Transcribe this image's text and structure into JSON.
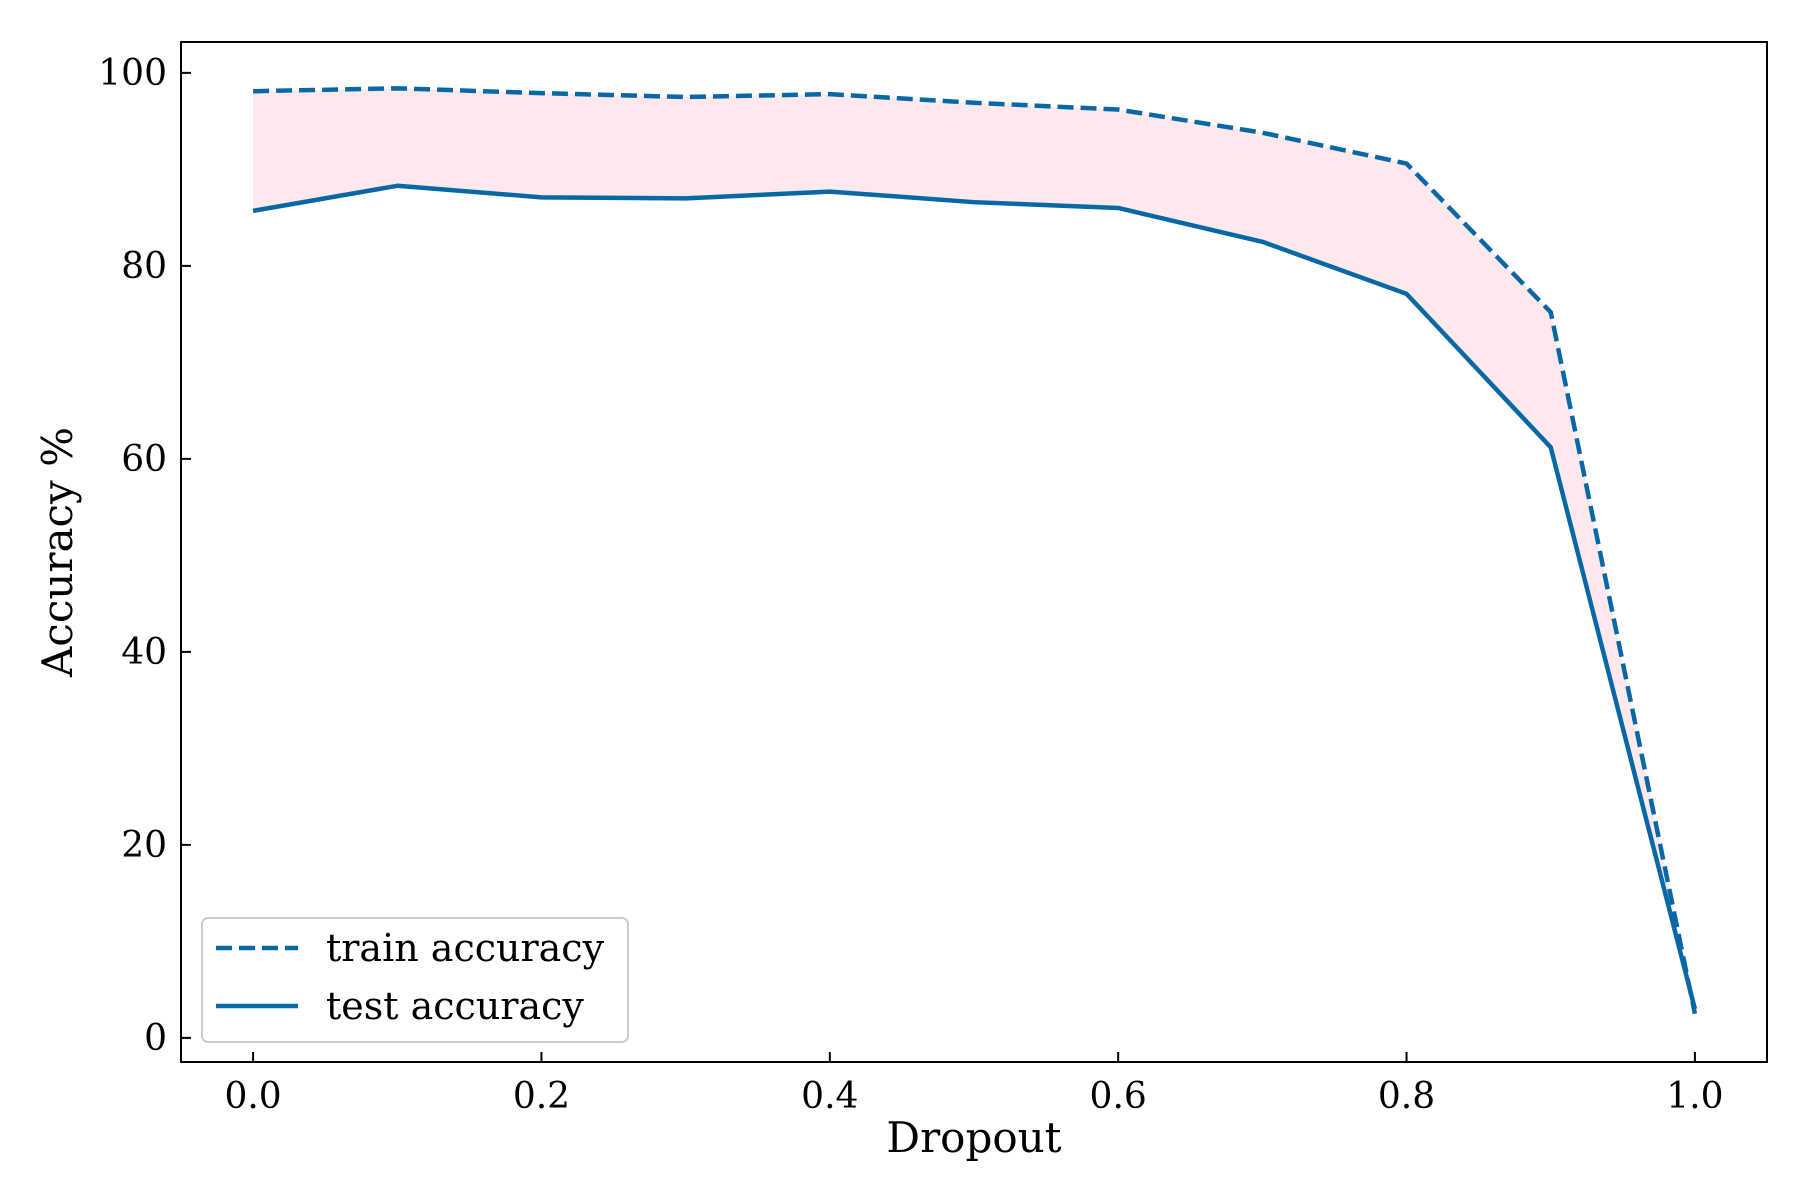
{
  "chart_data": {
    "type": "line",
    "title": "",
    "xlabel": "Dropout",
    "ylabel": "Accuracy %",
    "x": [
      0.0,
      0.1,
      0.2,
      0.3,
      0.4,
      0.5,
      0.6,
      0.7,
      0.8,
      0.9,
      1.0
    ],
    "series": [
      {
        "name": "train accuracy",
        "style": "dashed",
        "color": "#0868a6",
        "values": [
          98.1,
          98.4,
          97.9,
          97.5,
          97.8,
          96.9,
          96.2,
          93.8,
          90.6,
          75.2,
          2.5
        ]
      },
      {
        "name": "test accuracy",
        "style": "solid",
        "color": "#0868a6",
        "values": [
          85.7,
          88.3,
          87.1,
          87.0,
          87.7,
          86.6,
          86.0,
          82.5,
          77.1,
          61.2,
          3.0
        ]
      }
    ],
    "fill_between": {
      "color": "#fde8ee",
      "series": [
        "train accuracy",
        "test accuracy"
      ]
    },
    "xlim": [
      -0.05,
      1.05
    ],
    "ylim": [
      -2.5,
      103.2
    ],
    "xticks": [
      0.0,
      0.2,
      0.4,
      0.6,
      0.8,
      1.0
    ],
    "xtick_labels": [
      "0.0",
      "0.2",
      "0.4",
      "0.6",
      "0.8",
      "1.0"
    ],
    "yticks": [
      0,
      20,
      40,
      60,
      80,
      100
    ],
    "ytick_labels": [
      "0",
      "20",
      "40",
      "60",
      "80",
      "100"
    ],
    "grid": false,
    "legend_position": "bottom-left"
  }
}
